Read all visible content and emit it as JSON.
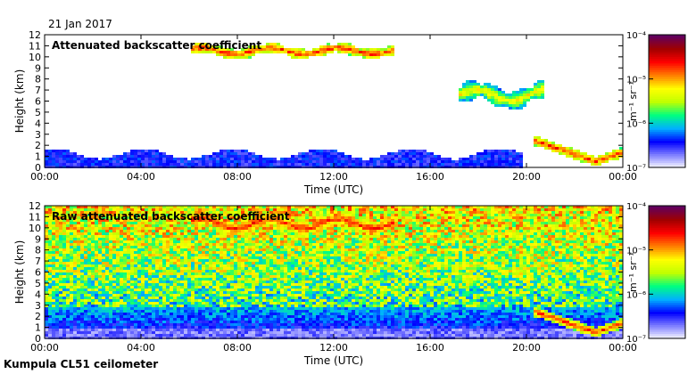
{
  "date_label": "21 Jan 2017",
  "footer_label": "Kumpula CL51 ceilometer",
  "chart_data": [
    {
      "type": "heatmap",
      "title": "Attenuated backscatter coefficient",
      "xlabel": "Time (UTC)",
      "ylabel": "Height (km)",
      "xlim": [
        0,
        24
      ],
      "ylim": [
        0,
        12
      ],
      "x_ticks": [
        0,
        4,
        8,
        12,
        16,
        20,
        24
      ],
      "x_tick_labels": [
        "00:00",
        "04:00",
        "08:00",
        "12:00",
        "16:00",
        "20:00",
        "00:00"
      ],
      "y_ticks": [
        0,
        1,
        2,
        3,
        4,
        5,
        6,
        7,
        8,
        9,
        10,
        11,
        12
      ],
      "y_tick_labels": [
        "0",
        "1",
        "2",
        "3",
        "4",
        "5",
        "6",
        "7",
        "8",
        "9",
        "10",
        "11",
        "12"
      ],
      "colorbar": {
        "min_label": "10⁻⁷",
        "max_label": "10⁻⁴",
        "tick_labels": [
          "10⁻⁷",
          "10⁻⁶",
          "10⁻⁵",
          "10⁻⁴"
        ],
        "unit_label": "m⁻¹ sr⁻¹",
        "colors": [
          "#ffffff",
          "#8080ff",
          "#0000ff",
          "#00b0ff",
          "#00ff80",
          "#c0ff00",
          "#ffff00",
          "#ff8000",
          "#ff0000",
          "#a00000",
          "#600060"
        ]
      },
      "features": [
        {
          "name": "boundary-layer",
          "x0": 0,
          "x1": 19.8,
          "y_top": 1.6,
          "intensity": "low"
        },
        {
          "name": "cirrus-high",
          "x0": 6,
          "x1": 14.5,
          "y_low": 10.0,
          "y_high": 11.3,
          "intensity": "high"
        },
        {
          "name": "cirrus-mid",
          "x0": 17.1,
          "x1": 20.6,
          "y_low": 5.5,
          "y_high": 7.8,
          "intensity": "medium"
        },
        {
          "name": "low-cloud",
          "x0": 20.2,
          "x1": 24,
          "y_low": 0.2,
          "y_high": 2.9,
          "intensity": "high"
        }
      ]
    },
    {
      "type": "heatmap",
      "title": "Raw attenuated backscatter coefficient",
      "xlabel": "Time (UTC)",
      "ylabel": "Height (km)",
      "xlim": [
        0,
        24
      ],
      "ylim": [
        0,
        12
      ],
      "x_ticks": [
        0,
        4,
        8,
        12,
        16,
        20,
        24
      ],
      "x_tick_labels": [
        "00:00",
        "04:00",
        "08:00",
        "12:00",
        "16:00",
        "20:00",
        "00:00"
      ],
      "y_ticks": [
        0,
        1,
        2,
        3,
        4,
        5,
        6,
        7,
        8,
        9,
        10,
        11,
        12
      ],
      "y_tick_labels": [
        "0",
        "1",
        "2",
        "3",
        "4",
        "5",
        "6",
        "7",
        "8",
        "9",
        "10",
        "11",
        "12"
      ],
      "colorbar": {
        "min_label": "10⁻⁷",
        "max_label": "10⁻⁴",
        "tick_labels": [
          "10⁻⁷",
          "10⁻⁶",
          "10⁻⁵",
          "10⁻⁴"
        ],
        "unit_label": "m⁻¹ sr⁻¹",
        "colors": [
          "#ffffff",
          "#8080ff",
          "#0000ff",
          "#00b0ff",
          "#00ff80",
          "#c0ff00",
          "#ffff00",
          "#ff8000",
          "#ff0000",
          "#a00000",
          "#600060"
        ]
      },
      "features": [
        {
          "name": "noise-field",
          "x0": 0,
          "x1": 24,
          "y_low": 0,
          "y_high": 12,
          "intensity": "noise"
        },
        {
          "name": "cirrus-high",
          "x0": 6,
          "x1": 14.5,
          "y_low": 9.5,
          "y_high": 11.5,
          "intensity": "high"
        },
        {
          "name": "cirrus-mid",
          "x0": 17.1,
          "x1": 20.6,
          "y_low": 5.8,
          "y_high": 7.2,
          "intensity": "medium"
        },
        {
          "name": "low-cloud",
          "x0": 20.2,
          "x1": 24,
          "y_low": 0.2,
          "y_high": 2.7,
          "intensity": "high"
        }
      ]
    }
  ]
}
